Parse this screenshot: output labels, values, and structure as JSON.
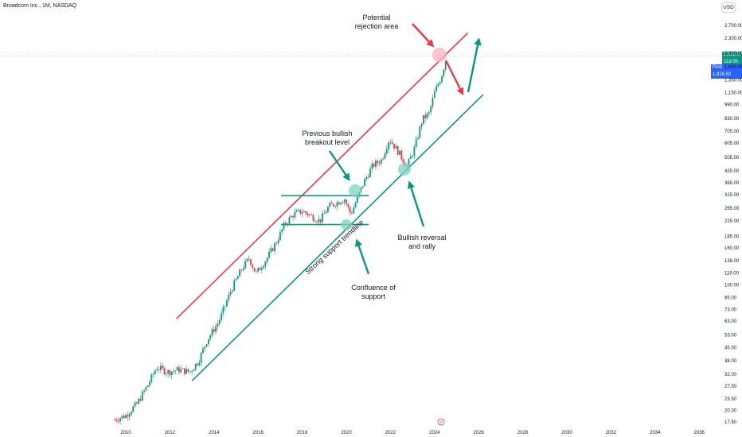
{
  "header": {
    "symbol": "Broadcom Inc., 1M, NASDAQ",
    "currency": "USD"
  },
  "price_axis": {
    "ticks": [
      "2,700.00",
      "2,300.00",
      "1,900.00",
      "1,600.00",
      "1,350.00",
      "1,150.00",
      "990.00",
      "830.00",
      "705.00",
      "605.00",
      "505.00",
      "425.00",
      "365.00",
      "315.00",
      "265.00",
      "225.00",
      "185.00",
      "160.00",
      "136.00",
      "116.00",
      "100.00",
      "85.00",
      "73.00",
      "63.00",
      "53.00",
      "45.00",
      "38.00",
      "32.00",
      "27.50",
      "23.50",
      "20.30",
      "17.50"
    ],
    "last_price": "1,828.07",
    "countdown": "11d 0h",
    "post_label": "Post",
    "post_price": "1,828.50",
    "last_color": "#089981",
    "post_color": "#2962ff"
  },
  "time_axis": {
    "ticks": [
      "2010",
      "2012",
      "2014",
      "2016",
      "2018",
      "2020",
      "2022",
      "2024",
      "2026",
      "2028",
      "2030",
      "2032",
      "2034",
      "2036"
    ]
  },
  "annotations": {
    "rejection": [
      "Potential",
      "rejection area"
    ],
    "breakout": [
      "Previous bullish",
      "breakout level"
    ],
    "trendline": "Strong support trendline",
    "confluence": [
      "Confluence of",
      "support"
    ],
    "reversal": [
      "Bullish reversal",
      "and rally"
    ]
  },
  "colors": {
    "up": "#089981",
    "down": "#f23645",
    "resistance_line": "#f23645",
    "support_line": "#089981",
    "rejection_circle": "#f7b6be",
    "support_circle": "#7fd1c0"
  },
  "chart_data": {
    "type": "candlestick",
    "title": "Broadcom Inc., 1M, NASDAQ",
    "scale": "log",
    "ylim": [
      17.5,
      2800
    ],
    "xlim": [
      2009.4,
      2037.0
    ],
    "grid": false,
    "resistance_trendline": {
      "from": [
        2012.3,
        65
      ],
      "to": [
        2025.5,
        2450
      ]
    },
    "support_trendline": {
      "from": [
        2013.0,
        29.5
      ],
      "to": [
        2026.2,
        1120
      ]
    },
    "horizontal_levels": [
      310,
      215
    ],
    "trend_anchors": [
      [
        2009.5,
        18
      ],
      [
        2010.0,
        19
      ],
      [
        2010.5,
        22
      ],
      [
        2011.0,
        28
      ],
      [
        2011.4,
        35
      ],
      [
        2011.9,
        33
      ],
      [
        2012.4,
        34
      ],
      [
        2012.9,
        33
      ],
      [
        2013.3,
        38
      ],
      [
        2013.7,
        50
      ],
      [
        2014.2,
        62
      ],
      [
        2014.8,
        95
      ],
      [
        2015.3,
        125
      ],
      [
        2015.6,
        140
      ],
      [
        2015.9,
        115
      ],
      [
        2016.4,
        140
      ],
      [
        2016.8,
        170
      ],
      [
        2017.2,
        215
      ],
      [
        2017.6,
        245
      ],
      [
        2018.0,
        255
      ],
      [
        2018.4,
        240
      ],
      [
        2018.8,
        225
      ],
      [
        2019.2,
        270
      ],
      [
        2019.6,
        285
      ],
      [
        2019.9,
        300
      ],
      [
        2020.2,
        245
      ],
      [
        2020.5,
        300
      ],
      [
        2020.8,
        370
      ],
      [
        2021.2,
        455
      ],
      [
        2021.6,
        490
      ],
      [
        2021.95,
        640
      ],
      [
        2022.4,
        530
      ],
      [
        2022.75,
        450
      ],
      [
        2023.1,
        570
      ],
      [
        2023.45,
        820
      ],
      [
        2023.75,
        880
      ],
      [
        2024.0,
        1150
      ],
      [
        2024.3,
        1400
      ],
      [
        2024.55,
        1828
      ]
    ],
    "last_price": 1828.07
  }
}
